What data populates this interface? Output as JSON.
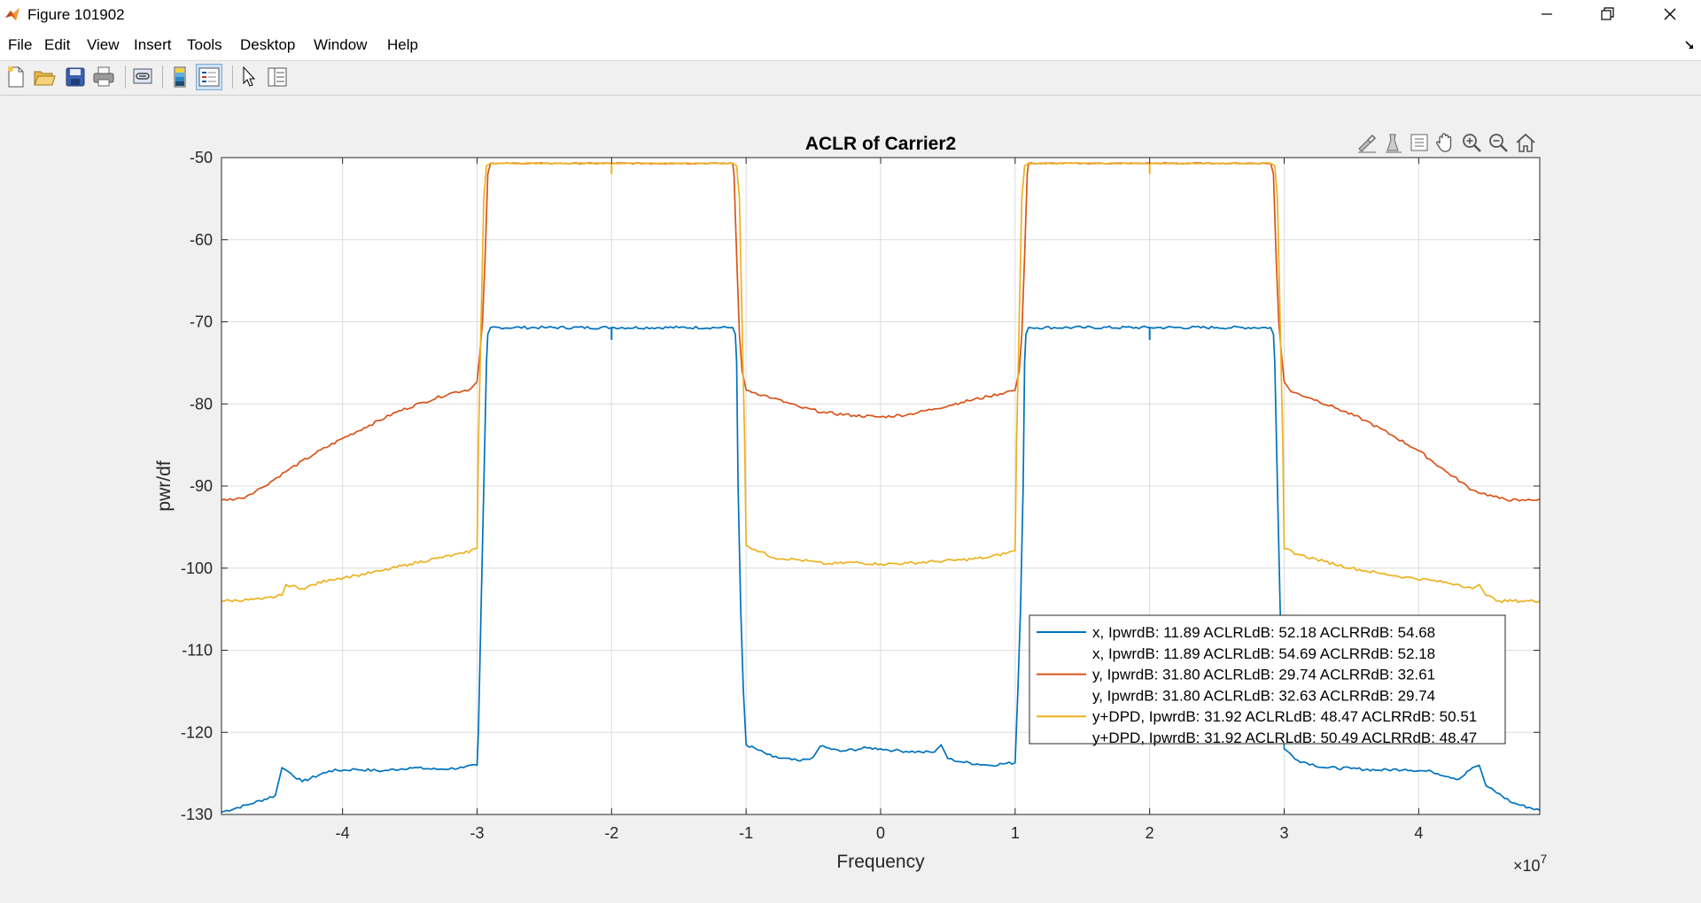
{
  "window": {
    "title": "Figure 101902",
    "controls": [
      "minimize",
      "restore",
      "close"
    ]
  },
  "menu": {
    "items": [
      "File",
      "Edit",
      "View",
      "Insert",
      "Tools",
      "Desktop",
      "Window",
      "Help"
    ]
  },
  "toolbar": {
    "buttons": [
      "new-figure-icon",
      "open-file-icon",
      "save-icon",
      "print-icon",
      "link-plot-icon",
      "colorbar-icon",
      "legend-icon",
      "edit-plot-icon",
      "property-inspector-icon"
    ],
    "active": "legend-icon"
  },
  "axes_toolbar": {
    "buttons": [
      "brush-icon",
      "data-cursor-icon",
      "data-tips-icon",
      "pan-icon",
      "zoom-in-icon",
      "zoom-out-icon",
      "home-icon"
    ]
  },
  "chart_data": {
    "type": "line",
    "title": "ACLR of Carrier2",
    "xlabel": "Frequency",
    "ylabel": "pwr/df",
    "x_exponent_label": "×10",
    "x_exponent": "7",
    "xlim": [
      -4.9,
      4.9
    ],
    "ylim": [
      -130,
      -50
    ],
    "xticks": [
      -4,
      -3,
      -2,
      -1,
      0,
      1,
      2,
      3,
      4
    ],
    "yticks": [
      -50,
      -60,
      -70,
      -80,
      -90,
      -100,
      -110,
      -120,
      -130
    ],
    "grid": true,
    "legend_position": "lower-right",
    "colors": {
      "x": "#0072bd",
      "y": "#d95319",
      "ydpd": "#edb120"
    },
    "legend": [
      {
        "label": "x, IpwrdB: 11.89 ACLRLdB: 52.18 ACLRRdB: 54.68",
        "color": "#0072bd"
      },
      {
        "label": "x, IpwrdB: 11.89 ACLRLdB: 54.69 ACLRRdB: 52.18",
        "color": null
      },
      {
        "label": "y, IpwrdB: 31.80 ACLRLdB: 29.74 ACLRRdB: 32.61",
        "color": "#d95319"
      },
      {
        "label": "y, IpwrdB: 31.80 ACLRLdB: 32.63 ACLRRdB: 29.74",
        "color": null
      },
      {
        "label": "y+DPD, IpwrdB: 31.92 ACLRLdB: 48.47 ACLRRdB: 50.51",
        "color": "#edb120"
      },
      {
        "label": "y+DPD, IpwrdB: 31.92 ACLRLdB: 50.49 ACLRRdB: 48.47",
        "color": null
      }
    ],
    "series": [
      {
        "key": "x",
        "color": "#0072bd",
        "x": [
          -4.9,
          -4.7,
          -4.5,
          -4.45,
          -4.42,
          -4.3,
          -4.1,
          -3.9,
          -3.7,
          -3.5,
          -3.3,
          -3.1,
          -3.0,
          -2.99,
          -2.97,
          -2.95,
          -2.93,
          -2.92,
          -2.9,
          -2.5,
          -2.0,
          -1.5,
          -1.1,
          -1.08,
          -1.07,
          -1.06,
          -1.04,
          -1.02,
          -1.0,
          -0.8,
          -0.6,
          -0.5,
          -0.45,
          -0.3,
          -0.1,
          0.0,
          0.1,
          0.3,
          0.4,
          0.45,
          0.5,
          0.6,
          0.8,
          1.0,
          1.02,
          1.04,
          1.06,
          1.07,
          1.08,
          1.1,
          1.5,
          2.0,
          2.5,
          2.9,
          2.92,
          2.93,
          2.95,
          2.97,
          2.99,
          3.0,
          3.1,
          3.3,
          3.5,
          3.7,
          3.9,
          4.1,
          4.3,
          4.4,
          4.45,
          4.5,
          4.7,
          4.9
        ],
        "y": [
          -129.7,
          -128.8,
          -127.7,
          -124.3,
          -124.6,
          -126.0,
          -124.7,
          -124.5,
          -124.7,
          -124.3,
          -124.5,
          -124.3,
          -124.0,
          -120.0,
          -105.0,
          -90.0,
          -75.0,
          -71.5,
          -70.7,
          -70.7,
          -70.7,
          -70.7,
          -70.7,
          -71.5,
          -75.0,
          -90.0,
          -105.0,
          -115.0,
          -121.5,
          -123.0,
          -123.5,
          -123.0,
          -121.7,
          -122.3,
          -121.9,
          -122.0,
          -122.2,
          -122.4,
          -122.4,
          -121.5,
          -123.2,
          -123.6,
          -124.0,
          -123.7,
          -115.0,
          -105.0,
          -90.0,
          -75.0,
          -71.5,
          -70.7,
          -70.7,
          -70.7,
          -70.7,
          -70.7,
          -71.5,
          -75.0,
          -90.0,
          -105.0,
          -115.0,
          -122.0,
          -123.4,
          -124.3,
          -124.4,
          -124.6,
          -124.5,
          -124.8,
          -125.7,
          -124.3,
          -124.0,
          -126.5,
          -128.6,
          -129.5
        ]
      },
      {
        "key": "y",
        "color": "#d95319",
        "x": [
          -4.9,
          -4.75,
          -4.6,
          -4.4,
          -4.2,
          -4.0,
          -3.8,
          -3.6,
          -3.4,
          -3.2,
          -3.05,
          -3.0,
          -2.98,
          -2.96,
          -2.94,
          -2.92,
          -2.9,
          -2.5,
          -2.0,
          -1.5,
          -1.1,
          -1.09,
          -1.07,
          -1.05,
          -1.03,
          -1.0,
          -0.8,
          -0.6,
          -0.4,
          -0.2,
          0.0,
          0.2,
          0.4,
          0.6,
          0.8,
          1.0,
          1.03,
          1.05,
          1.07,
          1.09,
          1.1,
          1.5,
          2.0,
          2.5,
          2.9,
          2.92,
          2.94,
          2.96,
          2.98,
          3.0,
          3.05,
          3.2,
          3.4,
          3.6,
          3.8,
          4.0,
          4.2,
          4.4,
          4.6,
          4.75,
          4.9
        ],
        "y": [
          -91.7,
          -91.5,
          -90.2,
          -88.0,
          -86.0,
          -84.2,
          -82.6,
          -81.0,
          -79.8,
          -78.7,
          -78.2,
          -77.3,
          -74.0,
          -70.0,
          -62.0,
          -52.0,
          -50.7,
          -50.7,
          -50.7,
          -50.7,
          -50.7,
          -52.0,
          -62.0,
          -71.5,
          -76.0,
          -78.3,
          -79.3,
          -80.4,
          -81.1,
          -81.4,
          -81.6,
          -81.3,
          -80.6,
          -79.8,
          -79.1,
          -78.3,
          -76.0,
          -71.5,
          -62.0,
          -52.0,
          -50.7,
          -50.7,
          -50.7,
          -50.7,
          -50.7,
          -52.0,
          -62.0,
          -70.0,
          -74.0,
          -77.3,
          -78.5,
          -79.3,
          -80.6,
          -82.0,
          -83.8,
          -85.7,
          -88.2,
          -90.5,
          -91.5,
          -91.8,
          -91.6
        ]
      },
      {
        "key": "ydpd",
        "color": "#edb120",
        "x": [
          -4.9,
          -4.6,
          -4.45,
          -4.42,
          -4.3,
          -4.1,
          -3.9,
          -3.7,
          -3.5,
          -3.3,
          -3.1,
          -3.0,
          -2.99,
          -2.97,
          -2.95,
          -2.93,
          -2.9,
          -2.5,
          -2.0,
          -1.5,
          -1.1,
          -1.07,
          -1.05,
          -1.03,
          -1.01,
          -1.0,
          -0.8,
          -0.6,
          -0.4,
          -0.2,
          0.0,
          0.2,
          0.4,
          0.6,
          0.8,
          1.0,
          1.01,
          1.03,
          1.05,
          1.07,
          1.1,
          1.5,
          2.0,
          2.5,
          2.9,
          2.93,
          2.95,
          2.97,
          2.99,
          3.0,
          3.1,
          3.3,
          3.5,
          3.7,
          3.9,
          4.1,
          4.3,
          4.4,
          4.45,
          4.5,
          4.6,
          4.9
        ],
        "y": [
          -104.0,
          -103.8,
          -103.3,
          -102.0,
          -102.5,
          -101.4,
          -100.9,
          -100.3,
          -99.5,
          -98.8,
          -98.2,
          -97.6,
          -85.0,
          -70.0,
          -55.0,
          -51.0,
          -50.7,
          -50.7,
          -50.7,
          -50.7,
          -50.7,
          -51.0,
          -55.0,
          -70.0,
          -85.0,
          -97.2,
          -98.7,
          -99.0,
          -99.5,
          -99.3,
          -99.5,
          -99.4,
          -99.2,
          -99.0,
          -98.7,
          -97.9,
          -85.0,
          -70.0,
          -55.0,
          -51.0,
          -50.7,
          -50.7,
          -50.7,
          -50.7,
          -50.7,
          -51.0,
          -55.0,
          -70.0,
          -85.0,
          -97.6,
          -98.3,
          -99.2,
          -100.0,
          -100.6,
          -101.1,
          -101.5,
          -102.0,
          -102.5,
          -102.0,
          -103.3,
          -104.0,
          -104.0
        ]
      }
    ],
    "notches": [
      {
        "series": "x",
        "x": -2.0,
        "y_low": -72.2
      },
      {
        "series": "x",
        "x": 2.0,
        "y_low": -72.2
      },
      {
        "series": "ydpd",
        "x": -2.0,
        "y_low": -52.0
      },
      {
        "series": "ydpd",
        "x": 2.0,
        "y_low": -52.0
      }
    ]
  }
}
